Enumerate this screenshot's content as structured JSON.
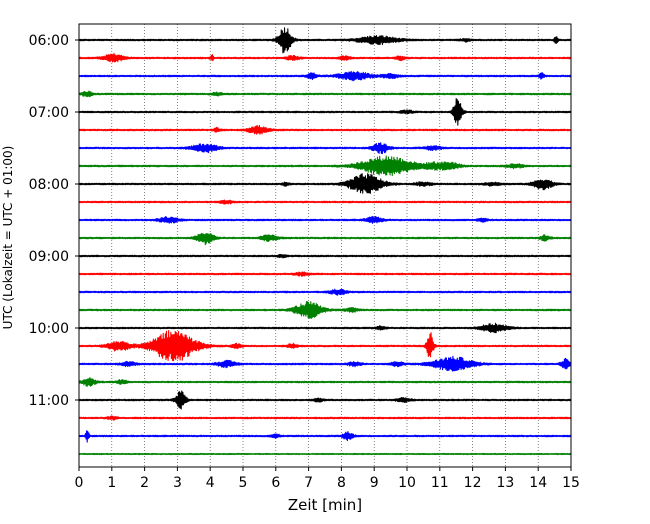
{
  "chart_data": {
    "type": "line",
    "title": "",
    "xlabel": "Zeit  [min]",
    "ylabel": "UTC (Lokalzeit = UTC + 01:00)",
    "xlim": [
      0,
      15
    ],
    "x_ticks": [
      "0",
      "1",
      "2",
      "3",
      "4",
      "5",
      "6",
      "7",
      "8",
      "9",
      "10",
      "11",
      "12",
      "13",
      "14",
      "15"
    ],
    "y_tick_labels": [
      "06:00",
      "07:00",
      "08:00",
      "09:00",
      "10:00",
      "11:00"
    ],
    "y_tick_rows": [
      0,
      4,
      8,
      12,
      16,
      20
    ],
    "grid": "vertical dotted at each minute",
    "row_start": "06:00",
    "row_interval_min": 15,
    "color_cycle": [
      "#000000",
      "#ff0000",
      "#0000ff",
      "#008000"
    ],
    "traces": [
      {
        "noise": 0.8,
        "events": [
          {
            "t": 6.28,
            "amp": 14,
            "dur": 0.4
          },
          {
            "t": 9.1,
            "amp": 4,
            "dur": 1.2
          },
          {
            "t": 14.55,
            "amp": 6,
            "dur": 0.1
          },
          {
            "t": 11.8,
            "amp": 1.5,
            "dur": 0.3
          }
        ]
      },
      {
        "noise": 0.8,
        "events": [
          {
            "t": 1.05,
            "amp": 4,
            "dur": 0.6
          },
          {
            "t": 4.05,
            "amp": 3,
            "dur": 0.1
          },
          {
            "t": 6.5,
            "amp": 2,
            "dur": 0.4
          },
          {
            "t": 8.1,
            "amp": 2,
            "dur": 0.3
          },
          {
            "t": 9.8,
            "amp": 2,
            "dur": 0.3
          }
        ]
      },
      {
        "noise": 0.8,
        "events": [
          {
            "t": 7.1,
            "amp": 3,
            "dur": 0.3
          },
          {
            "t": 8.4,
            "amp": 4,
            "dur": 1.0
          },
          {
            "t": 14.1,
            "amp": 3,
            "dur": 0.15
          },
          {
            "t": 9.5,
            "amp": 2,
            "dur": 0.5
          }
        ]
      },
      {
        "noise": 0.8,
        "events": [
          {
            "t": 0.25,
            "amp": 2.5,
            "dur": 0.3
          },
          {
            "t": 4.2,
            "amp": 1.5,
            "dur": 0.3
          }
        ]
      },
      {
        "noise": 0.8,
        "events": [
          {
            "t": 11.55,
            "amp": 16,
            "dur": 0.25
          },
          {
            "t": 10.0,
            "amp": 1.5,
            "dur": 0.4
          }
        ]
      },
      {
        "noise": 0.8,
        "events": [
          {
            "t": 5.45,
            "amp": 4,
            "dur": 0.6
          },
          {
            "t": 4.2,
            "amp": 2,
            "dur": 0.2
          }
        ]
      },
      {
        "noise": 0.8,
        "events": [
          {
            "t": 3.85,
            "amp": 4,
            "dur": 0.8
          },
          {
            "t": 9.2,
            "amp": 5,
            "dur": 0.5
          },
          {
            "t": 10.8,
            "amp": 2,
            "dur": 0.5
          }
        ]
      },
      {
        "noise": 0.8,
        "events": [
          {
            "t": 9.4,
            "amp": 10,
            "dur": 1.6
          },
          {
            "t": 11.3,
            "amp": 4,
            "dur": 0.6
          },
          {
            "t": 10.8,
            "amp": 3,
            "dur": 0.5
          },
          {
            "t": 13.3,
            "amp": 2,
            "dur": 0.5
          }
        ]
      },
      {
        "noise": 0.8,
        "events": [
          {
            "t": 8.75,
            "amp": 10,
            "dur": 1.0
          },
          {
            "t": 14.15,
            "amp": 5,
            "dur": 0.6
          },
          {
            "t": 10.5,
            "amp": 2,
            "dur": 0.5
          },
          {
            "t": 12.6,
            "amp": 1.5,
            "dur": 0.5
          },
          {
            "t": 6.3,
            "amp": 1.5,
            "dur": 0.2
          }
        ]
      },
      {
        "noise": 0.8,
        "events": [
          {
            "t": 4.5,
            "amp": 1.5,
            "dur": 0.4
          }
        ]
      },
      {
        "noise": 0.8,
        "events": [
          {
            "t": 2.75,
            "amp": 3,
            "dur": 0.6
          },
          {
            "t": 9.0,
            "amp": 3,
            "dur": 0.5
          },
          {
            "t": 12.3,
            "amp": 1.5,
            "dur": 0.3
          }
        ]
      },
      {
        "noise": 0.8,
        "events": [
          {
            "t": 3.85,
            "amp": 6,
            "dur": 0.5
          },
          {
            "t": 5.8,
            "amp": 3,
            "dur": 0.5
          },
          {
            "t": 14.2,
            "amp": 2.5,
            "dur": 0.3
          }
        ]
      },
      {
        "noise": 0.8,
        "events": [
          {
            "t": 6.2,
            "amp": 1.5,
            "dur": 0.3
          }
        ]
      },
      {
        "noise": 0.8,
        "events": [
          {
            "t": 6.8,
            "amp": 1.5,
            "dur": 0.5
          }
        ]
      },
      {
        "noise": 0.8,
        "events": [
          {
            "t": 7.9,
            "amp": 2.5,
            "dur": 0.5
          }
        ]
      },
      {
        "noise": 0.8,
        "events": [
          {
            "t": 7.0,
            "amp": 8,
            "dur": 0.8
          },
          {
            "t": 8.3,
            "amp": 2,
            "dur": 0.4
          }
        ]
      },
      {
        "noise": 0.8,
        "events": [
          {
            "t": 12.65,
            "amp": 4,
            "dur": 0.8
          },
          {
            "t": 9.2,
            "amp": 1.5,
            "dur": 0.3
          }
        ]
      },
      {
        "noise": 0.8,
        "events": [
          {
            "t": 2.9,
            "amp": 16,
            "dur": 1.3
          },
          {
            "t": 1.2,
            "amp": 5,
            "dur": 0.7
          },
          {
            "t": 10.7,
            "amp": 15,
            "dur": 0.2
          },
          {
            "t": 4.8,
            "amp": 2,
            "dur": 0.3
          },
          {
            "t": 6.5,
            "amp": 2,
            "dur": 0.3
          }
        ]
      },
      {
        "noise": 0.8,
        "events": [
          {
            "t": 11.4,
            "amp": 7,
            "dur": 1.2
          },
          {
            "t": 14.85,
            "amp": 5,
            "dur": 0.3
          },
          {
            "t": 4.5,
            "amp": 3,
            "dur": 0.6
          },
          {
            "t": 1.5,
            "amp": 2,
            "dur": 0.5
          },
          {
            "t": 8.4,
            "amp": 2,
            "dur": 0.4
          },
          {
            "t": 9.7,
            "amp": 2,
            "dur": 0.4
          }
        ]
      },
      {
        "noise": 0.8,
        "events": [
          {
            "t": 0.3,
            "amp": 4,
            "dur": 0.4
          },
          {
            "t": 1.3,
            "amp": 2,
            "dur": 0.3
          }
        ]
      },
      {
        "noise": 0.8,
        "events": [
          {
            "t": 3.1,
            "amp": 9,
            "dur": 0.3
          },
          {
            "t": 9.9,
            "amp": 2,
            "dur": 0.4
          },
          {
            "t": 7.3,
            "amp": 1.5,
            "dur": 0.3
          }
        ]
      },
      {
        "noise": 0.8,
        "events": [
          {
            "t": 1.0,
            "amp": 1.5,
            "dur": 0.3
          }
        ]
      },
      {
        "noise": 0.8,
        "events": [
          {
            "t": 0.25,
            "amp": 7,
            "dur": 0.1
          },
          {
            "t": 8.2,
            "amp": 4,
            "dur": 0.3
          },
          {
            "t": 6.0,
            "amp": 1.5,
            "dur": 0.3
          }
        ]
      },
      {
        "noise": 0.6,
        "events": []
      }
    ]
  }
}
